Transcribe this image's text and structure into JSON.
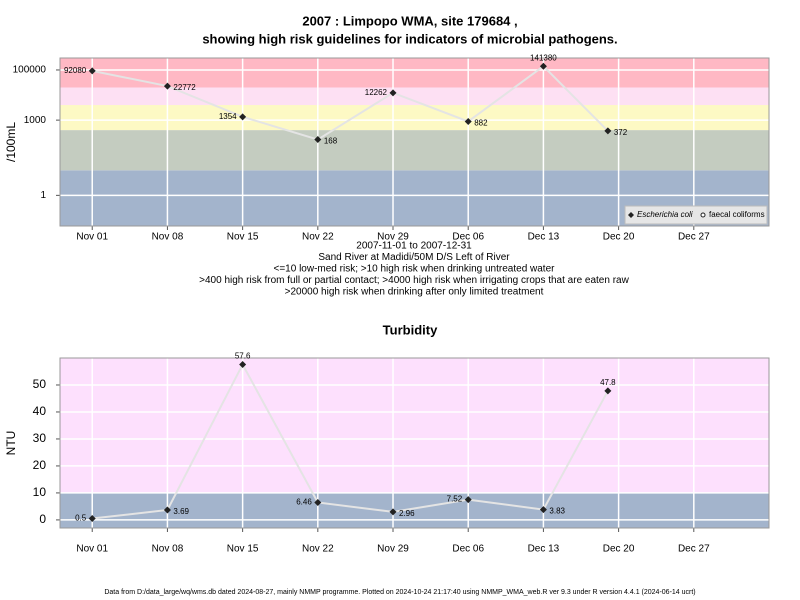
{
  "chart_data": [
    {
      "type": "line",
      "title": [
        "2007 : Limpopo WMA, site 179684 ,",
        "showing high risk guidelines for indicators of microbial pathogens."
      ],
      "y_label": "/100mL",
      "subtitle": [
        "2007-11-01 to 2007-12-31",
        "Sand River at Madidi/50M D/S Left of River",
        "<=10 low-med risk; >10 high risk when drinking untreated water",
        ">400 high risk from full or partial contact; >4000 high risk when irrigating crops that are eaten raw",
        ">20000 high risk when drinking after only limited treatment"
      ],
      "log_y": true,
      "x": [
        "2007-11-01",
        "2007-11-08",
        "2007-11-15",
        "2007-11-22",
        "2007-11-29",
        "2007-12-06",
        "2007-12-13",
        "2007-12-19"
      ],
      "series": [
        {
          "name": "Escherichia coli",
          "color": "#222222",
          "values": [
            92080,
            22772,
            1354,
            168,
            12262,
            882,
            141380,
            372
          ]
        },
        {
          "name": "faecal coliforms",
          "color": "#222222",
          "values": [
            null,
            null,
            null,
            null,
            null,
            null,
            null,
            null
          ]
        }
      ],
      "xlim": [
        "2007-10-29",
        "2008-01-03"
      ],
      "xticks": [
        {
          "value": "2007-11-01",
          "label": "Nov 01"
        },
        {
          "value": "2007-11-08",
          "label": "Nov 08"
        },
        {
          "value": "2007-11-15",
          "label": "Nov 15"
        },
        {
          "value": "2007-11-22",
          "label": "Nov 22"
        },
        {
          "value": "2007-11-29",
          "label": "Nov 29"
        },
        {
          "value": "2007-12-06",
          "label": "Dec 06"
        },
        {
          "value": "2007-12-13",
          "label": "Dec 13"
        },
        {
          "value": "2007-12-20",
          "label": "Dec 20"
        },
        {
          "value": "2007-12-27",
          "label": "Dec 27"
        }
      ],
      "ylim": [
        0.06,
        300000
      ],
      "yticks": [
        1,
        1000,
        100000
      ],
      "bands": [
        {
          "to": 10,
          "color": "#a3b4cc"
        },
        {
          "from": 10,
          "to": 400,
          "color": "#c4ccc0"
        },
        {
          "from": 400,
          "to": 4000,
          "color": "#fdf9c4"
        },
        {
          "from": 4000,
          "to": 20000,
          "color": "#fde0f3"
        },
        {
          "from": 20000,
          "color": "#ffb8c4"
        }
      ],
      "grid": true,
      "legend": "bottom-right"
    },
    {
      "type": "line",
      "title": [
        "Turbidity"
      ],
      "y_label": "NTU",
      "x": [
        "2007-11-01",
        "2007-11-08",
        "2007-11-15",
        "2007-11-22",
        "2007-11-29",
        "2007-12-06",
        "2007-12-13",
        "2007-12-19"
      ],
      "values": [
        0.5,
        3.69,
        57.6,
        6.46,
        2.96,
        7.52,
        3.83,
        47.8
      ],
      "color": "#222222",
      "xlim": [
        "2007-10-29",
        "2008-01-03"
      ],
      "xticks": [
        {
          "value": "2007-11-01",
          "label": "Nov 01"
        },
        {
          "value": "2007-11-08",
          "label": "Nov 08"
        },
        {
          "value": "2007-11-15",
          "label": "Nov 15"
        },
        {
          "value": "2007-11-22",
          "label": "Nov 22"
        },
        {
          "value": "2007-11-29",
          "label": "Nov 29"
        },
        {
          "value": "2007-12-06",
          "label": "Dec 06"
        },
        {
          "value": "2007-12-13",
          "label": "Dec 13"
        },
        {
          "value": "2007-12-20",
          "label": "Dec 20"
        },
        {
          "value": "2007-12-27",
          "label": "Dec 27"
        }
      ],
      "ylim": [
        -3,
        60
      ],
      "yticks": [
        0,
        10,
        20,
        30,
        40,
        50
      ],
      "bands": [
        {
          "to": 10,
          "color": "#a3b4cc"
        },
        {
          "from": 10,
          "color": "#fde0fd"
        }
      ],
      "grid": true
    }
  ],
  "footer": "Data from D:/data_large/wq/wms.db dated 2024-08-27, mainly NMMP programme. Plotted on 2024-10-24 21:17:40 using NMMP_WMA_web.R ver 9.3 under R version 4.4.1 (2024-06-14 ucrt)"
}
